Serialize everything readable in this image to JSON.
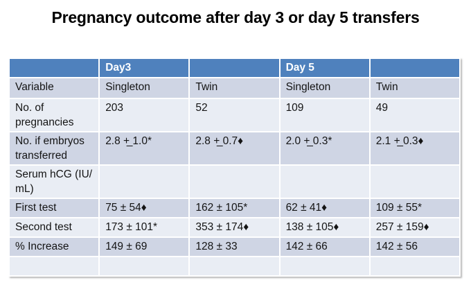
{
  "slide": {
    "title": "Pregnancy outcome after day 3 or day 5 transfers"
  },
  "table": {
    "header": [
      "",
      "Day3",
      "",
      "Day 5",
      ""
    ],
    "rows": [
      {
        "label": "Variable",
        "values": [
          "Singleton",
          "Twin",
          "Singleton",
          "Twin"
        ]
      },
      {
        "label": "No. of pregnancies",
        "values": [
          "203",
          "52",
          "109",
          "49"
        ]
      },
      {
        "label": "No. if embryos transferred",
        "values": [
          "2.8 +̲ 1.0*",
          "2.8 +̲ 0.7♦",
          "2.0 +̲ 0.3*",
          "2.1 +̲ 0.3♦"
        ]
      },
      {
        "label": "Serum hCG (IU/​mL)",
        "values": [
          "",
          "",
          "",
          ""
        ]
      },
      {
        "label": "First test",
        "values": [
          "75 ± 54♦",
          "162 ± 105*",
          "62 ± 41♦",
          "109 ± 55*"
        ]
      },
      {
        "label": "Second test",
        "values": [
          "173 ± 101*",
          "353 ± 174♦",
          "138 ± 105♦",
          "257 ± 159♦"
        ]
      },
      {
        "label": "% Increase",
        "values": [
          "149 ± 69",
          "128 ± 33",
          "142 ± 66",
          "142 ± 56"
        ]
      },
      {
        "label": "",
        "values": [
          "",
          "",
          "",
          ""
        ]
      }
    ]
  },
  "colors": {
    "header_bg": "#4f81bd",
    "band_dark": "#cfd5e4",
    "band_light": "#e9edf4",
    "header_text": "#ffffff",
    "body_text": "#141414",
    "slide_bg": "#ffffff"
  }
}
